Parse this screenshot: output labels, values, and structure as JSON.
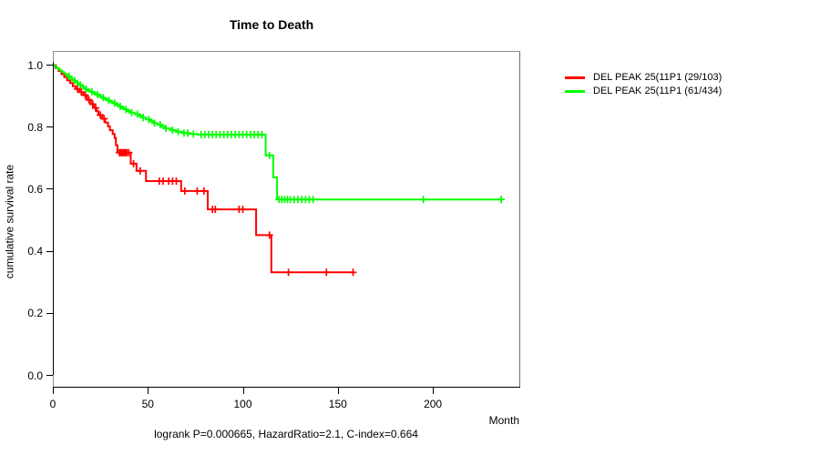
{
  "title": "Time to Death",
  "y_axis_label": "cumulative survival rate",
  "x_axis_label": "Month",
  "caption": "logrank P=0.000665, HazardRatio=2.1, C-index=0.664",
  "legend": [
    {
      "label": "DEL PEAK 25(11P1 (29/103)",
      "color": "#ff0000"
    },
    {
      "label": "DEL PEAK 25(11P1 (61/434)",
      "color": "#00ff00"
    }
  ],
  "chart_data": {
    "type": "line",
    "subtype": "kaplan-meier-step-function",
    "title": "Time to Death",
    "xlabel": "Month",
    "ylabel": "cumulative survival rate",
    "xlim": [
      0,
      246
    ],
    "ylim": [
      0.0,
      1.0
    ],
    "grid": false,
    "legend_position": "right-outside",
    "x_ticks": [
      {
        "m": 0,
        "label": "0"
      },
      {
        "m": 50,
        "label": "50"
      },
      {
        "m": 100,
        "label": "100"
      },
      {
        "m": 150,
        "label": "150"
      },
      {
        "m": 200,
        "label": "200"
      }
    ],
    "y_ticks": [
      {
        "v": 1.0,
        "label": "1.0"
      },
      {
        "v": 0.8,
        "label": "0.8"
      },
      {
        "v": 0.6,
        "label": "0.6"
      },
      {
        "v": 0.4,
        "label": "0.4"
      },
      {
        "v": 0.2,
        "label": "0.2"
      },
      {
        "v": 0.0,
        "label": "0.0"
      }
    ],
    "stats": {
      "logrank_p": "0.000665",
      "hazard_ratio": "2.1",
      "c_index": "0.664"
    },
    "series": [
      {
        "name": "DEL PEAK 25(11P1 (29/103)",
        "events": "29/103",
        "color": "#ff0000",
        "end_month": 158,
        "steps": [
          [
            0,
            1.0
          ],
          [
            1.5,
            0.99
          ],
          [
            3,
            0.981
          ],
          [
            4.5,
            0.971
          ],
          [
            6,
            0.961
          ],
          [
            7.5,
            0.951
          ],
          [
            9,
            0.942
          ],
          [
            10.5,
            0.932
          ],
          [
            12,
            0.923
          ],
          [
            14,
            0.913
          ],
          [
            16,
            0.903
          ],
          [
            18,
            0.888
          ],
          [
            20,
            0.874
          ],
          [
            21.5,
            0.862
          ],
          [
            23,
            0.851
          ],
          [
            24,
            0.839
          ],
          [
            26,
            0.827
          ],
          [
            27.5,
            0.815
          ],
          [
            29,
            0.803
          ],
          [
            30,
            0.79
          ],
          [
            31.5,
            0.778
          ],
          [
            32.5,
            0.765
          ],
          [
            33.2,
            0.742
          ],
          [
            34,
            0.718
          ],
          [
            41,
            0.682
          ],
          [
            44,
            0.659
          ],
          [
            49,
            0.626
          ],
          [
            67.5,
            0.594
          ],
          [
            81.5,
            0.535
          ],
          [
            107,
            0.452
          ],
          [
            115,
            0.332
          ]
        ],
        "censor_months": [
          13,
          15,
          17,
          19,
          21,
          22.5,
          25,
          27,
          35,
          35.8,
          36.6,
          37.4,
          38.2,
          39,
          40,
          42.5,
          46,
          56,
          58,
          61,
          63,
          65,
          69.5,
          76,
          79.5,
          84,
          85.5,
          98,
          100,
          114,
          124,
          144,
          158
        ]
      },
      {
        "name": "DEL PEAK 25(11P1 (61/434)",
        "events": "61/434",
        "color": "#00ff00",
        "end_month": 236,
        "steps": [
          [
            0,
            1.0
          ],
          [
            1,
            0.995
          ],
          [
            2,
            0.991
          ],
          [
            3,
            0.986
          ],
          [
            4,
            0.982
          ],
          [
            5,
            0.977
          ],
          [
            6,
            0.973
          ],
          [
            7,
            0.968
          ],
          [
            8,
            0.964
          ],
          [
            9,
            0.959
          ],
          [
            10,
            0.954
          ],
          [
            11,
            0.95
          ],
          [
            12,
            0.945
          ],
          [
            13,
            0.941
          ],
          [
            14,
            0.936
          ],
          [
            15,
            0.932
          ],
          [
            16,
            0.927
          ],
          [
            17,
            0.923
          ],
          [
            18,
            0.918
          ],
          [
            19.5,
            0.914
          ],
          [
            21,
            0.909
          ],
          [
            22.5,
            0.905
          ],
          [
            24,
            0.9
          ],
          [
            25.5,
            0.895
          ],
          [
            27,
            0.891
          ],
          [
            28.5,
            0.886
          ],
          [
            30,
            0.882
          ],
          [
            31.5,
            0.877
          ],
          [
            33,
            0.872
          ],
          [
            34.5,
            0.867
          ],
          [
            36,
            0.862
          ],
          [
            37.5,
            0.857
          ],
          [
            39,
            0.852
          ],
          [
            41,
            0.847
          ],
          [
            43,
            0.842
          ],
          [
            45,
            0.837
          ],
          [
            47,
            0.831
          ],
          [
            49,
            0.825
          ],
          [
            51,
            0.819
          ],
          [
            53,
            0.813
          ],
          [
            55,
            0.808
          ],
          [
            57,
            0.802
          ],
          [
            59,
            0.796
          ],
          [
            62,
            0.79
          ],
          [
            65,
            0.785
          ],
          [
            68,
            0.781
          ],
          [
            72,
            0.778
          ],
          [
            76,
            0.776
          ],
          [
            112,
            0.709
          ],
          [
            116,
            0.638
          ],
          [
            118,
            0.567
          ]
        ],
        "censor_months": [
          8.5,
          11.5,
          14.5,
          17.5,
          20.5,
          23.5,
          26.5,
          29.5,
          32.5,
          35.5,
          38.5,
          41.5,
          44.5,
          47.5,
          50.5,
          53.5,
          56.5,
          59.5,
          63,
          66,
          69,
          71,
          74,
          78,
          80,
          82,
          84,
          86,
          88,
          90,
          92,
          94,
          96,
          98,
          100,
          102,
          104,
          106,
          108,
          110,
          114,
          119,
          120.5,
          122,
          123.5,
          125,
          127,
          129,
          131,
          133,
          135,
          137,
          195,
          236
        ]
      }
    ]
  }
}
